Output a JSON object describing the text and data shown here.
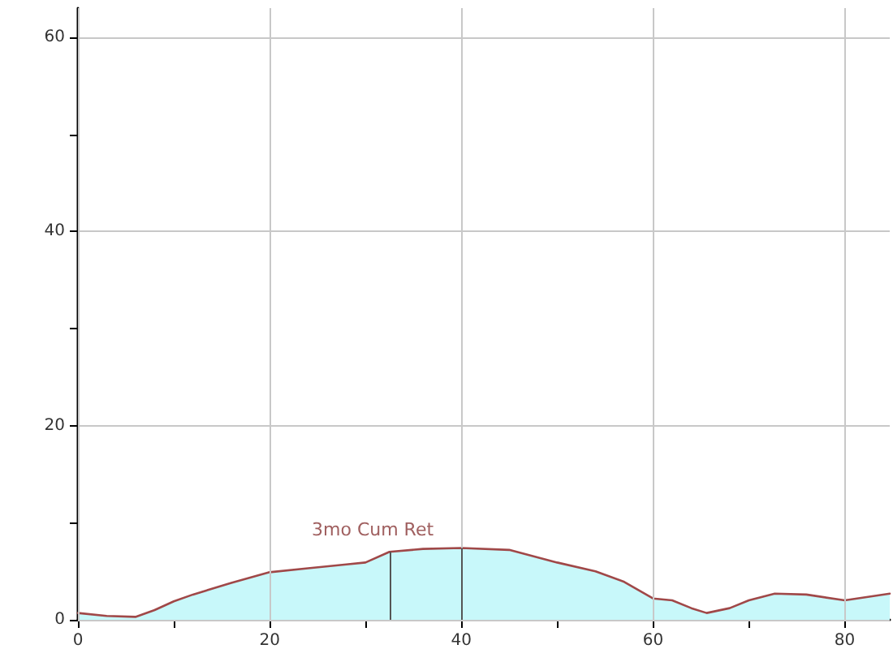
{
  "chart_data": {
    "type": "area",
    "xlim": [
      0,
      84.7
    ],
    "ylim": [
      0,
      63
    ],
    "xticks": [
      0,
      {
        "value": 10,
        "label": null
      },
      20,
      {
        "value": 30,
        "label": null
      },
      40,
      {
        "value": 50,
        "label": null
      },
      60,
      {
        "value": 70,
        "label": null
      },
      80
    ],
    "yticks": [
      0,
      {
        "value": 10,
        "label": null
      },
      20,
      {
        "value": 30,
        "label": null
      },
      40,
      {
        "value": 50,
        "label": null
      },
      60
    ],
    "grid": true,
    "marker": "none",
    "line_style": "solid",
    "series": [
      {
        "color": "#c8f8fa",
        "x": [
          0,
          3,
          6,
          8,
          10,
          12,
          16,
          20,
          24,
          28,
          30,
          32.5,
          36,
          40,
          45,
          50,
          54,
          57,
          60,
          62,
          64,
          65.6,
          68,
          70,
          72.7,
          76,
          80,
          82,
          84.7
        ],
        "values": [
          0.7,
          0.4,
          0.3,
          1.0,
          1.9,
          2.6,
          3.8,
          4.9,
          5.3,
          5.7,
          5.9,
          7.0,
          7.3,
          7.4,
          7.2,
          5.9,
          5.0,
          3.9,
          2.2,
          2.0,
          1.2,
          0.7,
          1.2,
          2.0,
          2.7,
          2.6,
          2.0,
          2.3,
          2.7
        ]
      },
      {
        "type": "line",
        "color": "#a04848",
        "x": [
          0,
          3,
          6,
          8,
          10,
          12,
          16,
          20,
          24,
          28,
          30,
          32.5,
          36,
          40,
          45,
          50,
          54,
          57,
          60,
          62,
          64,
          65.6,
          68,
          70,
          72.7,
          76,
          80,
          82,
          84.7
        ],
        "values": [
          0.7,
          0.4,
          0.3,
          1.0,
          1.9,
          2.6,
          3.8,
          4.9,
          5.3,
          5.7,
          5.9,
          7.0,
          7.3,
          7.4,
          7.2,
          5.9,
          5.0,
          3.9,
          2.2,
          2.0,
          1.2,
          0.7,
          1.2,
          2.0,
          2.7,
          2.6,
          2.0,
          2.3,
          2.7
        ]
      }
    ],
    "ref_lines": [
      {
        "axis": "x",
        "value": 32.5
      },
      {
        "axis": "x",
        "value": 40
      }
    ],
    "annotations": [
      "3mo Cum Ret"
    ]
  }
}
